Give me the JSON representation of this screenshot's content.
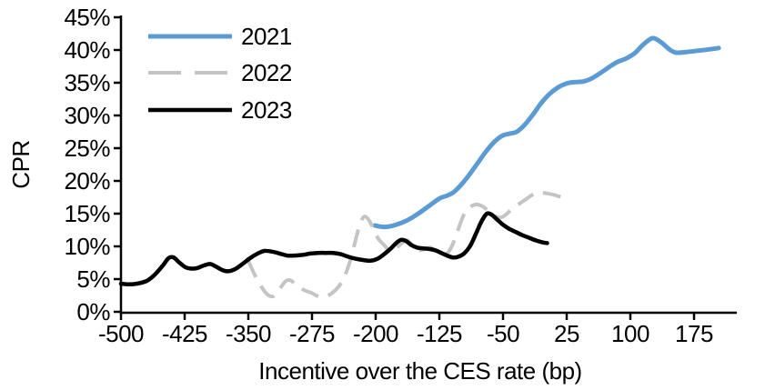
{
  "chart_data": {
    "type": "line",
    "title": "",
    "xlabel": "Incentive over the CES rate (bp)",
    "ylabel": "CPR",
    "xlim": [
      -500,
      225
    ],
    "ylim": [
      0,
      45
    ],
    "grid": false,
    "legend_position": "top-left-inside",
    "axis_color": "#000000",
    "background_color": "#ffffff",
    "x_tick_values": [
      -500,
      -425,
      -350,
      -275,
      -200,
      -125,
      -50,
      25,
      100,
      175
    ],
    "x_tick_labels": [
      "-500",
      "-425",
      "-350",
      "-275",
      "-200",
      "-125",
      "-50",
      "25",
      "100",
      "175"
    ],
    "y_tick_values": [
      0,
      5,
      10,
      15,
      20,
      25,
      30,
      35,
      40,
      45
    ],
    "y_tick_labels": [
      "0%",
      "5%",
      "10%",
      "15%",
      "20%",
      "25%",
      "30%",
      "35%",
      "40%",
      "45%"
    ],
    "series": [
      {
        "name": "2021",
        "color": "#5B9BD5",
        "line_style": "solid",
        "points": [
          [
            -201,
            13.2
          ],
          [
            -193,
            13.0
          ],
          [
            -186,
            13.0
          ],
          [
            -176,
            13.3
          ],
          [
            -164,
            13.9
          ],
          [
            -151,
            14.9
          ],
          [
            -138,
            16.1
          ],
          [
            -125,
            17.3
          ],
          [
            -117,
            17.7
          ],
          [
            -109,
            18.2
          ],
          [
            -100,
            19.3
          ],
          [
            -90,
            20.9
          ],
          [
            -80,
            22.7
          ],
          [
            -70,
            24.5
          ],
          [
            -60,
            26.0
          ],
          [
            -51,
            26.9
          ],
          [
            -43,
            27.2
          ],
          [
            -34,
            27.5
          ],
          [
            -25,
            28.5
          ],
          [
            -15,
            30.1
          ],
          [
            -5,
            31.9
          ],
          [
            5,
            33.3
          ],
          [
            15,
            34.3
          ],
          [
            25,
            34.9
          ],
          [
            35,
            35.1
          ],
          [
            45,
            35.2
          ],
          [
            55,
            35.7
          ],
          [
            65,
            36.5
          ],
          [
            75,
            37.4
          ],
          [
            85,
            38.2
          ],
          [
            95,
            38.7
          ],
          [
            105,
            39.5
          ],
          [
            115,
            40.8
          ],
          [
            126,
            41.8
          ],
          [
            136,
            41.2
          ],
          [
            146,
            40.1
          ],
          [
            154,
            39.6
          ],
          [
            166,
            39.7
          ],
          [
            180,
            39.9
          ],
          [
            193,
            40.1
          ],
          [
            204,
            40.3
          ]
        ]
      },
      {
        "name": "2022",
        "color": "#C4C4C4",
        "line_style": "dashed",
        "points": [
          [
            -350,
            7.8
          ],
          [
            -343,
            5.8
          ],
          [
            -335,
            3.9
          ],
          [
            -327,
            2.6
          ],
          [
            -320,
            2.4
          ],
          [
            -313,
            3.5
          ],
          [
            -306,
            4.7
          ],
          [
            -300,
            4.8
          ],
          [
            -293,
            4.0
          ],
          [
            -284,
            3.3
          ],
          [
            -276,
            2.9
          ],
          [
            -268,
            2.4
          ],
          [
            -260,
            2.3
          ],
          [
            -252,
            2.8
          ],
          [
            -244,
            3.8
          ],
          [
            -237,
            5.3
          ],
          [
            -230,
            7.8
          ],
          [
            -224,
            10.8
          ],
          [
            -219,
            13.2
          ],
          [
            -214,
            14.5
          ],
          [
            -209,
            14.2
          ],
          [
            -203,
            12.8
          ],
          [
            -197,
            11.2
          ],
          [
            -190,
            10.2
          ],
          [
            -184,
            9.4
          ],
          [
            -177,
            9.6
          ],
          [
            -170,
            10.4
          ],
          [
            -163,
            10.9
          ],
          [
            -156,
            10.1
          ],
          [
            -149,
            9.4
          ],
          [
            -142,
            9.6
          ],
          [
            -135,
            9.8
          ],
          [
            -128,
            9.1
          ],
          [
            -121,
            8.6
          ],
          [
            -114,
            9.2
          ],
          [
            -107,
            11.0
          ],
          [
            -100,
            13.6
          ],
          [
            -94,
            15.4
          ],
          [
            -88,
            16.1
          ],
          [
            -81,
            16.4
          ],
          [
            -74,
            16.1
          ],
          [
            -67,
            15.4
          ],
          [
            -60,
            14.7
          ],
          [
            -53,
            14.4
          ],
          [
            -46,
            14.9
          ],
          [
            -39,
            15.8
          ],
          [
            -31,
            16.5
          ],
          [
            -23,
            17.2
          ],
          [
            -15,
            17.9
          ],
          [
            -7,
            18.2
          ],
          [
            1,
            18.1
          ],
          [
            9,
            17.9
          ],
          [
            17,
            17.6
          ],
          [
            25,
            17.3
          ]
        ]
      },
      {
        "name": "2023",
        "color": "#000000",
        "line_style": "solid",
        "points": [
          [
            -500,
            4.3
          ],
          [
            -491,
            4.2
          ],
          [
            -481,
            4.3
          ],
          [
            -470,
            4.7
          ],
          [
            -460,
            5.7
          ],
          [
            -450,
            7.2
          ],
          [
            -444,
            8.2
          ],
          [
            -438,
            8.3
          ],
          [
            -431,
            7.5
          ],
          [
            -424,
            6.8
          ],
          [
            -417,
            6.6
          ],
          [
            -410,
            6.7
          ],
          [
            -402,
            7.1
          ],
          [
            -395,
            7.3
          ],
          [
            -388,
            6.9
          ],
          [
            -381,
            6.4
          ],
          [
            -374,
            6.2
          ],
          [
            -366,
            6.5
          ],
          [
            -357,
            7.3
          ],
          [
            -348,
            8.2
          ],
          [
            -339,
            8.9
          ],
          [
            -331,
            9.3
          ],
          [
            -322,
            9.2
          ],
          [
            -313,
            8.9
          ],
          [
            -304,
            8.6
          ],
          [
            -295,
            8.6
          ],
          [
            -286,
            8.7
          ],
          [
            -277,
            8.9
          ],
          [
            -268,
            9.0
          ],
          [
            -259,
            9.0
          ],
          [
            -250,
            9.0
          ],
          [
            -241,
            8.8
          ],
          [
            -232,
            8.4
          ],
          [
            -223,
            8.1
          ],
          [
            -214,
            7.9
          ],
          [
            -206,
            7.8
          ],
          [
            -198,
            8.1
          ],
          [
            -190,
            8.8
          ],
          [
            -182,
            9.7
          ],
          [
            -175,
            10.6
          ],
          [
            -170,
            11.0
          ],
          [
            -164,
            10.8
          ],
          [
            -158,
            10.2
          ],
          [
            -151,
            9.8
          ],
          [
            -144,
            9.7
          ],
          [
            -137,
            9.6
          ],
          [
            -130,
            9.4
          ],
          [
            -123,
            9.0
          ],
          [
            -116,
            8.6
          ],
          [
            -109,
            8.3
          ],
          [
            -103,
            8.4
          ],
          [
            -96,
            8.9
          ],
          [
            -89,
            10.0
          ],
          [
            -82,
            11.9
          ],
          [
            -75,
            13.9
          ],
          [
            -69,
            15.0
          ],
          [
            -63,
            14.8
          ],
          [
            -57,
            14.1
          ],
          [
            -50,
            13.3
          ],
          [
            -43,
            12.7
          ],
          [
            -35,
            12.2
          ],
          [
            -27,
            11.7
          ],
          [
            -19,
            11.3
          ],
          [
            -11,
            10.9
          ],
          [
            -3,
            10.6
          ],
          [
            2,
            10.5
          ]
        ]
      }
    ]
  }
}
